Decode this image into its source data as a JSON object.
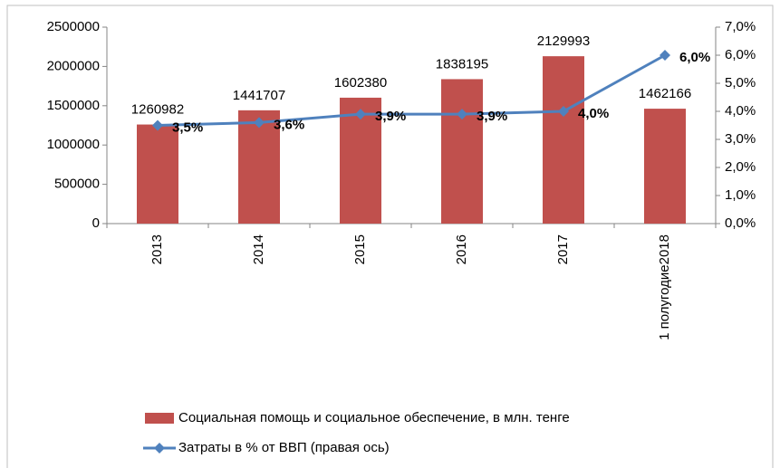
{
  "chart_data": {
    "type": "combo",
    "categories": [
      "2013",
      "2014",
      "2015",
      "2016",
      "2017",
      "1 полугодие2018"
    ],
    "series": [
      {
        "name": "Социальная помощь и социальное обеспечение, в млн. тенге",
        "type": "bar",
        "color": "#c0504d",
        "values": [
          1260982,
          1441707,
          1602380,
          1838195,
          2129993,
          1462166
        ]
      },
      {
        "name": "Затраты в % от ВВП (правая ось)",
        "type": "line",
        "axis": "y2",
        "color": "#4f81bd",
        "values": [
          3.5,
          3.6,
          3.9,
          3.9,
          4.0,
          6.0
        ],
        "value_labels": [
          "3,5%",
          "3,6%",
          "3,9%",
          "3,9%",
          "4,0%",
          "6,0%"
        ]
      }
    ],
    "ylim": [
      0,
      2500000
    ],
    "yticks": [
      0,
      500000,
      1000000,
      1500000,
      2000000,
      2500000
    ],
    "y2lim": [
      0,
      7
    ],
    "y2ticks": [
      {
        "value": 0,
        "label": "0,0%"
      },
      {
        "value": 1,
        "label": "1,0%"
      },
      {
        "value": 2,
        "label": "2,0%"
      },
      {
        "value": 3,
        "label": "3,0%"
      },
      {
        "value": 4,
        "label": "4,0%"
      },
      {
        "value": 5,
        "label": "5,0%"
      },
      {
        "value": 6,
        "label": "6,0%"
      },
      {
        "value": 7,
        "label": "7,0%"
      }
    ],
    "legend": "bottom"
  }
}
